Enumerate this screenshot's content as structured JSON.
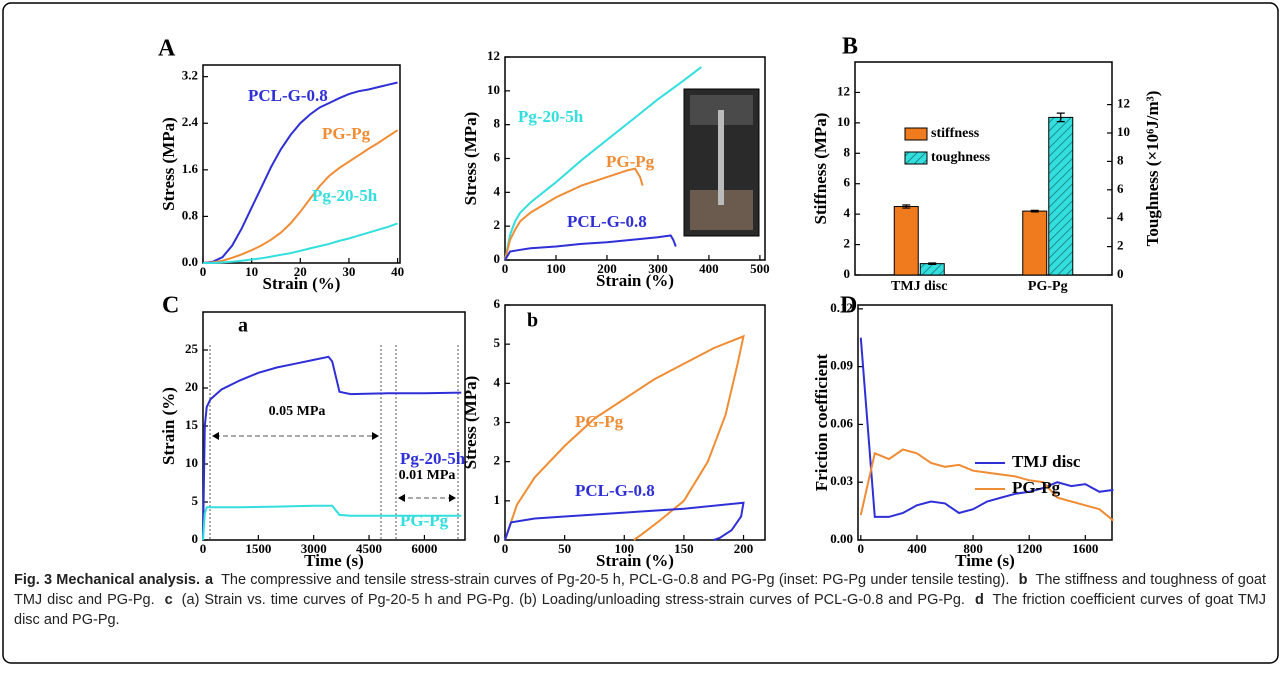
{
  "panel_labels": [
    "A",
    "B",
    "C",
    "D"
  ],
  "chart_data": [
    {
      "type": "line",
      "xlabel": "Strain (%)",
      "ylabel": "Stress (MPa)",
      "xlim": [
        0,
        40.5
      ],
      "ylim": [
        0,
        3.4
      ],
      "xticks": [
        0,
        10,
        20,
        30,
        40
      ],
      "yticks": [
        {
          "value": 0,
          "label": "0.0"
        },
        0.8,
        1.6,
        2.4,
        3.2
      ],
      "series": [
        {
          "name": "PCL-G-0.8",
          "color": "#2f2fd8",
          "x": [
            0,
            2,
            4,
            6,
            8,
            10,
            12,
            14,
            16,
            18,
            20,
            22,
            24,
            26,
            28,
            30,
            32,
            34,
            36,
            38,
            40
          ],
          "values": [
            0,
            0.02,
            0.1,
            0.3,
            0.6,
            0.95,
            1.3,
            1.65,
            1.95,
            2.2,
            2.4,
            2.55,
            2.67,
            2.75,
            2.83,
            2.9,
            2.95,
            2.98,
            3.02,
            3.06,
            3.1
          ]
        },
        {
          "name": "PG-Pg",
          "color": "#f08c34",
          "x": [
            0,
            2,
            4,
            6,
            8,
            10,
            12,
            14,
            16,
            18,
            20,
            22,
            24,
            26,
            28,
            30,
            32,
            34,
            36,
            38,
            40
          ],
          "values": [
            0,
            0.01,
            0.04,
            0.09,
            0.15,
            0.22,
            0.3,
            0.4,
            0.52,
            0.68,
            0.88,
            1.1,
            1.32,
            1.5,
            1.63,
            1.74,
            1.85,
            1.96,
            2.06,
            2.17,
            2.28
          ]
        },
        {
          "name": "Pg-20-5h",
          "color": "#33dede",
          "x": [
            0,
            2,
            4,
            6,
            8,
            10,
            12,
            14,
            16,
            18,
            20,
            22,
            24,
            26,
            28,
            30,
            32,
            34,
            36,
            38,
            40
          ],
          "values": [
            0,
            0,
            0.01,
            0.02,
            0.04,
            0.06,
            0.08,
            0.11,
            0.14,
            0.17,
            0.21,
            0.25,
            0.29,
            0.33,
            0.38,
            0.42,
            0.47,
            0.52,
            0.57,
            0.62,
            0.68
          ]
        }
      ]
    },
    {
      "type": "line",
      "xlabel": "Strain (%)",
      "ylabel": "Stress (MPa)",
      "xlim": [
        0,
        510
      ],
      "ylim": [
        0,
        12
      ],
      "xticks": [
        0,
        100,
        200,
        300,
        400,
        500
      ],
      "yticks": [
        0,
        2,
        4,
        6,
        8,
        10,
        12
      ],
      "series": [
        {
          "name": "Pg-20-5h",
          "color": "#33dede",
          "x": [
            0,
            10,
            20,
            30,
            50,
            100,
            150,
            200,
            250,
            300,
            350,
            385
          ],
          "values": [
            0,
            1.5,
            2.3,
            2.8,
            3.4,
            4.6,
            5.9,
            7.1,
            8.3,
            9.5,
            10.6,
            11.4
          ]
        },
        {
          "name": "PG-Pg",
          "color": "#f08c34",
          "x": [
            0,
            10,
            20,
            30,
            50,
            100,
            150,
            200,
            240,
            255,
            265,
            270
          ],
          "values": [
            0,
            1.2,
            1.8,
            2.3,
            2.8,
            3.7,
            4.4,
            4.9,
            5.3,
            5.4,
            4.9,
            4.4
          ]
        },
        {
          "name": "PCL-G-0.8",
          "color": "#2f2fd8",
          "x": [
            0,
            10,
            30,
            50,
            100,
            150,
            200,
            250,
            300,
            325,
            330,
            335
          ],
          "values": [
            0,
            0.5,
            0.6,
            0.7,
            0.8,
            0.95,
            1.05,
            1.2,
            1.35,
            1.45,
            1.2,
            0.8
          ]
        }
      ]
    },
    {
      "type": "bar",
      "ylabel": "Stiffness (MPa)",
      "y2label": "Toughness (×10⁶J/m³)",
      "categories": [
        "TMJ disc",
        "PG-Pg"
      ],
      "ylim": [
        0,
        14
      ],
      "yticks": [
        0,
        2,
        4,
        6,
        8,
        10,
        12
      ],
      "y2lim": [
        0,
        15
      ],
      "y2ticks": [
        0,
        2,
        4,
        6,
        8,
        10,
        12
      ],
      "series": [
        {
          "name": "stiffness",
          "color": "#f07a1e",
          "values": [
            4.5,
            4.2
          ],
          "errors": [
            0.1,
            0.05
          ]
        },
        {
          "name": "toughness",
          "color": "#33dede",
          "axis": "y2",
          "hatch": true,
          "values": [
            0.8,
            11.1
          ],
          "errors": [
            0.05,
            0.3
          ]
        }
      ]
    },
    {
      "type": "line",
      "subpanel": "a",
      "xlabel": "Time (s)",
      "ylabel": "Strain (%)",
      "xlim": [
        0,
        7100
      ],
      "ylim": [
        0,
        30
      ],
      "xticks": [
        0,
        1500,
        3000,
        4500,
        6000
      ],
      "yticks": [
        0,
        5,
        10,
        15,
        20,
        25
      ],
      "annotations": [
        "0.05 MPa",
        "0.01 MPa"
      ],
      "series": [
        {
          "name": "Pg-20-5h",
          "color": "#2f2fd8",
          "x": [
            0,
            50,
            100,
            200,
            500,
            1000,
            1500,
            2000,
            2500,
            3000,
            3400,
            3500,
            3700,
            4000,
            5000,
            6000,
            7000
          ],
          "values": [
            0,
            15,
            17.5,
            18.5,
            19.8,
            21,
            22,
            22.7,
            23.2,
            23.7,
            24.1,
            23.5,
            19.5,
            19.2,
            19.3,
            19.3,
            19.4
          ]
        },
        {
          "name": "PG-Pg",
          "color": "#33dede",
          "x": [
            0,
            50,
            100,
            1000,
            2000,
            3000,
            3500,
            3700,
            4000,
            5000,
            6000,
            7000
          ],
          "values": [
            0,
            3.5,
            4.3,
            4.3,
            4.4,
            4.5,
            4.5,
            3.3,
            3.2,
            3.2,
            3.2,
            3.2
          ]
        }
      ]
    },
    {
      "type": "line",
      "subpanel": "b",
      "xlabel": "Strain (%)",
      "ylabel": "Stress (MPa)",
      "xlim": [
        0,
        218
      ],
      "ylim": [
        0,
        6
      ],
      "xticks": [
        0,
        50,
        100,
        150,
        200
      ],
      "yticks": [
        0,
        1,
        2,
        3,
        4,
        5,
        6
      ],
      "series": [
        {
          "name": "PG-Pg",
          "color": "#f08c34",
          "x": [
            0,
            10,
            25,
            50,
            75,
            100,
            125,
            150,
            175,
            200,
            195,
            185,
            170,
            150,
            130,
            115,
            108
          ],
          "values": [
            0,
            0.9,
            1.6,
            2.4,
            3.1,
            3.6,
            4.1,
            4.5,
            4.9,
            5.2,
            4.5,
            3.2,
            2.0,
            1.0,
            0.5,
            0.15,
            0
          ]
        },
        {
          "name": "PCL-G-0.8",
          "color": "#2f2fd8",
          "x": [
            0,
            5,
            25,
            50,
            100,
            150,
            200,
            198,
            190,
            180,
            175
          ],
          "values": [
            0,
            0.45,
            0.55,
            0.6,
            0.7,
            0.8,
            0.95,
            0.6,
            0.25,
            0.05,
            0
          ]
        }
      ]
    },
    {
      "type": "line",
      "xlabel": "Time (s)",
      "ylabel": "Friction coefficient",
      "legend": "right",
      "xlim": [
        -20,
        1790
      ],
      "ylim": [
        0,
        0.122
      ],
      "xticks": [
        0,
        400,
        800,
        1200,
        1600
      ],
      "yticks": [
        {
          "value": 0,
          "label": "0.00"
        },
        0.03,
        0.06,
        0.09,
        0.12
      ],
      "series": [
        {
          "name": "TMJ disc",
          "color": "#2f2fd8",
          "x": [
            0,
            100,
            200,
            300,
            400,
            500,
            600,
            700,
            800,
            900,
            1000,
            1100,
            1200,
            1300,
            1400,
            1500,
            1600,
            1700,
            1800
          ],
          "values": [
            0.105,
            0.012,
            0.012,
            0.014,
            0.018,
            0.02,
            0.019,
            0.014,
            0.016,
            0.02,
            0.022,
            0.024,
            0.025,
            0.027,
            0.03,
            0.028,
            0.029,
            0.025,
            0.026
          ]
        },
        {
          "name": "PG-Pg",
          "color": "#f08c34",
          "x": [
            0,
            100,
            200,
            300,
            400,
            500,
            600,
            700,
            800,
            900,
            1000,
            1100,
            1200,
            1300,
            1400,
            1500,
            1600,
            1700,
            1800
          ],
          "values": [
            0.013,
            0.045,
            0.042,
            0.047,
            0.045,
            0.04,
            0.038,
            0.039,
            0.036,
            0.035,
            0.034,
            0.033,
            0.031,
            0.03,
            0.022,
            0.02,
            0.018,
            0.016,
            0.01
          ]
        }
      ]
    }
  ],
  "caption": {
    "title": "Fig. 3 Mechanical analysis.",
    "items": [
      {
        "label": "a",
        "text": "The compressive and tensile stress-strain curves of Pg-20-5 h, PCL-G-0.8 and PG-Pg (inset: PG-Pg under tensile testing)."
      },
      {
        "label": "b",
        "text": "The stiffness and toughness of goat TMJ disc and PG-Pg."
      },
      {
        "label": "c",
        "text": "(a) Strain vs. time curves of Pg-20-5 h and PG-Pg. (b) Loading/unloading stress-strain curves of PCL-G-0.8 and PG-Pg."
      },
      {
        "label": "d",
        "text": "The friction coefficient curves of goat TMJ disc and PG-Pg."
      }
    ]
  }
}
